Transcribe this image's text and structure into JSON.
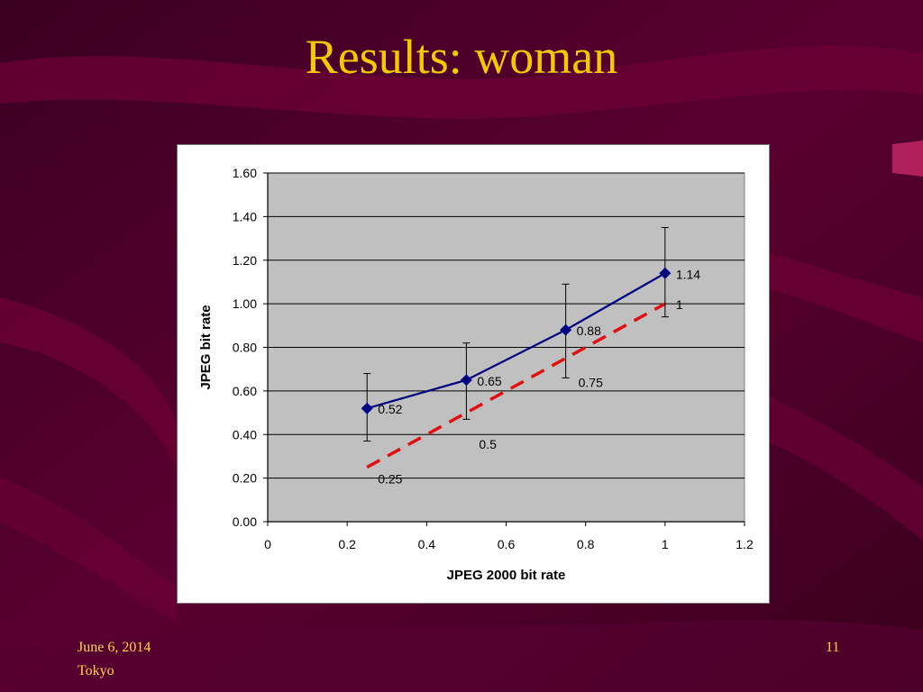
{
  "slide": {
    "title": "Results: woman",
    "footer_date": "June 6, 2014",
    "footer_place": "Tokyo",
    "page_number": "11"
  },
  "colors": {
    "background": "#4a0026",
    "title": "#f5c800",
    "footer": "#ffd34a",
    "plot_area": "#c0c0c0",
    "series_actual": "#000080",
    "series_reference": "#e01010"
  },
  "chart_data": {
    "type": "line",
    "title": "",
    "xlabel": "JPEG 2000 bit rate",
    "ylabel": "JPEG bit rate",
    "xlim": [
      0,
      1.2
    ],
    "ylim": [
      0,
      1.6
    ],
    "x_ticks": [
      "0",
      "0.2",
      "0.4",
      "0.6",
      "0.8",
      "1",
      "1.2"
    ],
    "y_ticks": [
      "0.00",
      "0.20",
      "0.40",
      "0.60",
      "0.80",
      "1.00",
      "1.20",
      "1.40",
      "1.60"
    ],
    "grid": "horizontal",
    "legend": "none",
    "series": [
      {
        "style": "solid-diamond",
        "color": "#000080",
        "x": [
          0.25,
          0.5,
          0.75,
          1.0
        ],
        "y": [
          0.52,
          0.65,
          0.88,
          1.14
        ],
        "labels": [
          "0.52",
          "0.65",
          "0.88",
          "1.14"
        ],
        "error_low": [
          0.37,
          0.47,
          0.66,
          0.94
        ],
        "error_high": [
          0.68,
          0.82,
          1.09,
          1.35
        ]
      },
      {
        "style": "dashed",
        "color": "#e01010",
        "x": [
          0.25,
          0.5,
          0.75,
          1.0
        ],
        "y": [
          0.25,
          0.5,
          0.75,
          1.0
        ],
        "labels": [
          "0.25",
          "0.5",
          "0.75",
          "1"
        ]
      }
    ]
  }
}
